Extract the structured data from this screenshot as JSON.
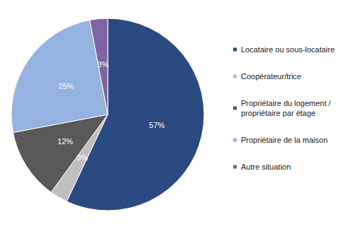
{
  "chart_data": {
    "type": "pie",
    "categories": [
      "Locataire ou sous-locataire",
      "Coopérateur/trice",
      "Propriétaire du logement / propriétaire par étage",
      "Propriétaire de la maison",
      "Autre situation"
    ],
    "values": [
      57,
      3,
      12,
      25,
      3
    ],
    "value_labels": [
      "57%",
      "3%",
      "12%",
      "25%",
      "3%"
    ],
    "colors": [
      "#2b4a82",
      "#bfbfbf",
      "#595959",
      "#95b3e0",
      "#8064a2"
    ],
    "data_labels": true,
    "legend": "right"
  }
}
